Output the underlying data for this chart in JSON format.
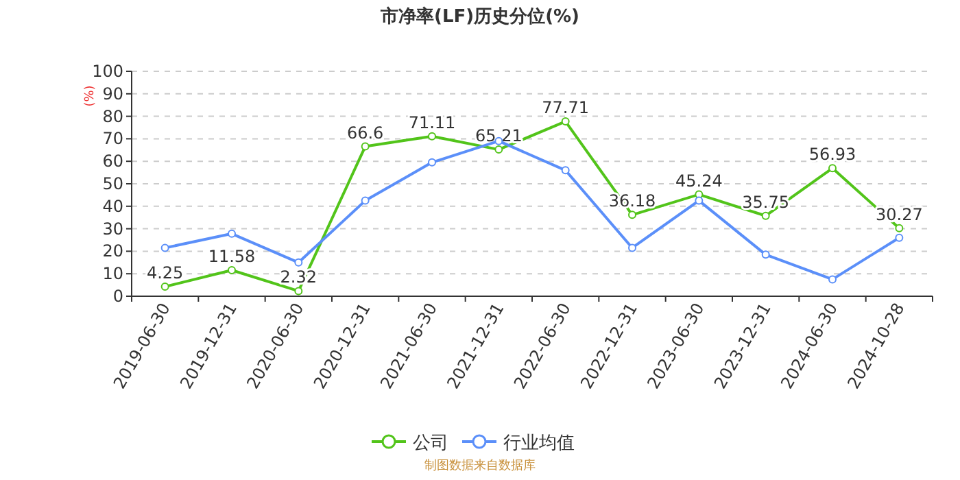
{
  "chart_data": {
    "type": "line",
    "title": "市净率(LF)历史分位(%)",
    "ylabel": "(%)",
    "categories": [
      "2019-06-30",
      "2019-12-31",
      "2020-06-30",
      "2020-12-31",
      "2021-06-30",
      "2021-12-31",
      "2022-06-30",
      "2022-12-31",
      "2023-06-30",
      "2023-12-31",
      "2024-06-30",
      "2024-10-28"
    ],
    "series": [
      {
        "name": "公司",
        "color": "#52c41a",
        "values": [
          4.25,
          11.58,
          2.32,
          66.6,
          71.11,
          65.21,
          77.71,
          36.18,
          45.24,
          35.75,
          56.93,
          30.27
        ],
        "value_labels": [
          "4.25",
          "11.58",
          "2.32",
          "66.6",
          "71.11",
          "65.21",
          "77.71",
          "36.18",
          "45.24",
          "35.75",
          "56.93",
          "30.27"
        ]
      },
      {
        "name": "行业均值",
        "color": "#5b8ff9",
        "values": [
          21.5,
          27.8,
          15,
          42.5,
          59.5,
          69,
          56,
          21.5,
          42.5,
          18.5,
          7.5,
          26
        ]
      }
    ],
    "ylim": [
      0,
      100
    ],
    "yticks": [
      0,
      10,
      20,
      30,
      40,
      50,
      60,
      70,
      80,
      90,
      100
    ],
    "grid": "y",
    "legend": "bottom",
    "marker": "circle",
    "line_style": "solid",
    "annotations": [
      "制图数据来自数据库"
    ]
  }
}
